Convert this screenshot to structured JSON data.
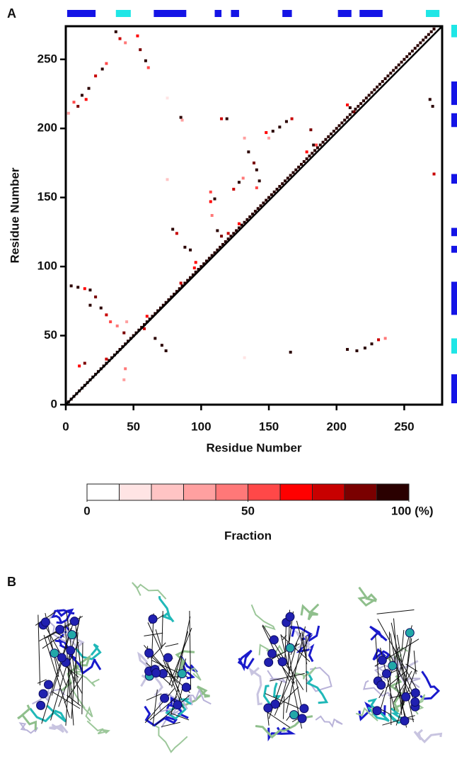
{
  "panel_labels": [
    "A",
    "B"
  ],
  "chart_data": [
    {
      "type": "contact_map",
      "xlabel": "Residue Number",
      "ylabel": "Residue Number",
      "xlim": [
        0,
        278
      ],
      "ylim": [
        0,
        274
      ],
      "xticks": [
        0,
        50,
        100,
        150,
        200,
        250
      ],
      "yticks": [
        0,
        50,
        100,
        150,
        200,
        250
      ],
      "structure_segments": {
        "starts": [
          1,
          37,
          65,
          110,
          122,
          160,
          201,
          217,
          266
        ],
        "ends": [
          22,
          48,
          89,
          115,
          128,
          167,
          211,
          234,
          276
        ],
        "colors": [
          "#1414e6",
          "#1fe6e6",
          "#1414e6",
          "#1414e6",
          "#1414e6",
          "#1414e6",
          "#1414e6",
          "#1414e6",
          "#1fe6e6"
        ]
      },
      "series": [
        {
          "x": [
            2,
            4,
            6,
            8,
            10,
            12,
            14,
            16,
            18,
            20,
            22,
            24,
            26,
            28,
            30,
            32,
            34,
            36,
            38,
            40,
            42,
            44,
            46,
            48,
            50,
            52,
            54,
            56,
            58,
            60,
            62,
            64,
            66,
            68,
            70,
            72,
            74,
            76,
            78,
            80,
            82,
            84,
            86,
            88,
            90,
            92,
            94,
            96,
            98,
            100,
            102,
            104,
            106,
            108,
            110,
            112,
            114,
            116,
            118,
            120,
            122,
            124,
            126,
            128,
            130,
            132,
            134,
            136,
            138,
            140,
            142,
            144,
            146,
            148,
            150,
            152,
            154,
            156,
            158,
            160,
            162,
            164,
            166,
            168,
            170,
            172,
            174,
            176,
            178,
            180,
            182,
            184,
            186,
            188,
            190,
            192,
            194,
            196,
            198,
            200,
            202,
            204,
            206,
            208,
            210,
            212,
            214,
            216,
            218,
            220,
            222,
            224,
            226,
            228,
            230,
            232,
            234,
            236,
            238,
            240,
            242,
            244,
            246,
            248,
            250,
            252,
            254,
            256,
            258,
            260,
            262,
            264,
            266,
            268,
            270,
            272
          ],
          "y": [
            2,
            4,
            6,
            8,
            10,
            12,
            14,
            16,
            18,
            20,
            22,
            24,
            26,
            28,
            30,
            32,
            34,
            36,
            38,
            40,
            42,
            44,
            46,
            48,
            50,
            52,
            54,
            56,
            58,
            60,
            62,
            64,
            66,
            68,
            70,
            72,
            74,
            76,
            78,
            80,
            82,
            84,
            86,
            88,
            90,
            92,
            94,
            96,
            98,
            100,
            102,
            104,
            106,
            108,
            110,
            112,
            114,
            116,
            118,
            120,
            122,
            124,
            126,
            128,
            130,
            132,
            134,
            136,
            138,
            140,
            142,
            144,
            146,
            148,
            150,
            152,
            154,
            156,
            158,
            160,
            162,
            164,
            166,
            168,
            170,
            172,
            174,
            176,
            178,
            180,
            182,
            184,
            186,
            188,
            190,
            192,
            194,
            196,
            198,
            200,
            202,
            204,
            206,
            208,
            210,
            212,
            214,
            216,
            218,
            220,
            222,
            224,
            226,
            228,
            230,
            232,
            234,
            236,
            238,
            240,
            242,
            244,
            246,
            248,
            250,
            252,
            254,
            256,
            258,
            260,
            262,
            264,
            266,
            268,
            270,
            272
          ],
          "values": [
            100,
            100,
            100,
            100,
            100,
            100,
            100,
            100,
            100,
            100,
            100,
            100,
            100,
            100,
            100,
            100,
            100,
            100,
            100,
            100,
            100,
            100,
            100,
            100,
            100,
            100,
            100,
            100,
            100,
            100,
            100,
            100,
            100,
            100,
            100,
            100,
            100,
            100,
            100,
            100,
            100,
            100,
            100,
            100,
            100,
            100,
            100,
            100,
            100,
            100,
            100,
            100,
            100,
            100,
            100,
            100,
            100,
            100,
            100,
            100,
            100,
            100,
            100,
            100,
            100,
            100,
            100,
            100,
            100,
            100,
            100,
            100,
            100,
            100,
            100,
            100,
            100,
            100,
            100,
            100,
            100,
            100,
            100,
            100,
            100,
            100,
            100,
            100,
            100,
            100,
            100,
            100,
            100,
            100,
            100,
            100,
            100,
            100,
            100,
            100,
            100,
            100,
            100,
            100,
            100,
            100,
            100,
            100,
            100,
            100,
            100,
            100,
            100,
            100,
            100,
            100,
            100,
            100,
            100,
            100,
            100,
            100,
            100,
            100,
            100,
            100,
            100,
            100,
            100,
            100,
            100,
            100,
            100,
            100,
            100,
            100
          ]
        },
        {
          "x": [
            2,
            6,
            12,
            17,
            22,
            27,
            30,
            9,
            15,
            37,
            40,
            44,
            53,
            55,
            59,
            61,
            85,
            86,
            75,
            75,
            115,
            119,
            107,
            110,
            107,
            79,
            82,
            88,
            92,
            108,
            112,
            115,
            96,
            132,
            135,
            139,
            141,
            143,
            141,
            124,
            128,
            131,
            148,
            153,
            158,
            163,
            167,
            150,
            181,
            183,
            185,
            208,
            210,
            213,
            269,
            271,
            272,
            4,
            9,
            14,
            18,
            22,
            26,
            30,
            33,
            38,
            43,
            45,
            18,
            66,
            71,
            74,
            44,
            43,
            132,
            166,
            208,
            221,
            226,
            231,
            236,
            215,
            14,
            10,
            30,
            60,
            95,
            128,
            178,
            58,
            85,
            120
          ],
          "y": [
            211,
            219,
            224,
            229,
            238,
            243,
            247,
            216,
            221,
            270,
            265,
            262,
            267,
            257,
            249,
            244,
            208,
            206,
            222,
            163,
            207,
            207,
            154,
            149,
            147,
            127,
            124,
            114,
            112,
            137,
            126,
            122,
            103,
            193,
            183,
            175,
            170,
            162,
            157,
            156,
            161,
            164,
            197,
            198,
            201,
            205,
            207,
            193,
            199,
            188,
            188,
            217,
            215,
            212,
            221,
            216,
            167,
            86,
            85,
            84,
            83,
            78,
            70,
            65,
            60,
            57,
            52,
            60,
            72,
            48,
            43,
            39,
            26,
            18,
            34,
            38,
            40,
            41,
            44,
            47,
            48,
            39,
            30,
            28,
            33,
            64,
            99,
            131,
            183,
            55,
            88,
            124
          ],
          "values": [
            30,
            50,
            100,
            90,
            70,
            100,
            50,
            80,
            60,
            100,
            70,
            40,
            60,
            80,
            100,
            50,
            90,
            30,
            15,
            20,
            70,
            100,
            50,
            90,
            60,
            100,
            70,
            100,
            90,
            40,
            100,
            80,
            60,
            30,
            100,
            80,
            100,
            90,
            50,
            70,
            100,
            40,
            60,
            100,
            90,
            100,
            70,
            30,
            80,
            100,
            50,
            60,
            100,
            80,
            90,
            100,
            70,
            100,
            90,
            60,
            100,
            80,
            100,
            70,
            50,
            40,
            80,
            30,
            100,
            90,
            100,
            100,
            40,
            30,
            15,
            100,
            100,
            90,
            100,
            70,
            40,
            100,
            80,
            60,
            70,
            60,
            60,
            60,
            60,
            70,
            70,
            70
          ]
        }
      ]
    },
    {
      "type": "colorbar",
      "xlabel": "Fraction",
      "xlim": [
        0,
        100
      ],
      "xticks": [
        0,
        50,
        {
          "value": 100,
          "label": "100 (%)"
        }
      ],
      "colors": [
        "#ffffff",
        "#ffe4e4",
        "#ffc4c4",
        "#ffa0a0",
        "#ff7878",
        "#ff4848",
        "#ff0000",
        "#c80000",
        "#7a0000",
        "#2a0000"
      ]
    }
  ]
}
